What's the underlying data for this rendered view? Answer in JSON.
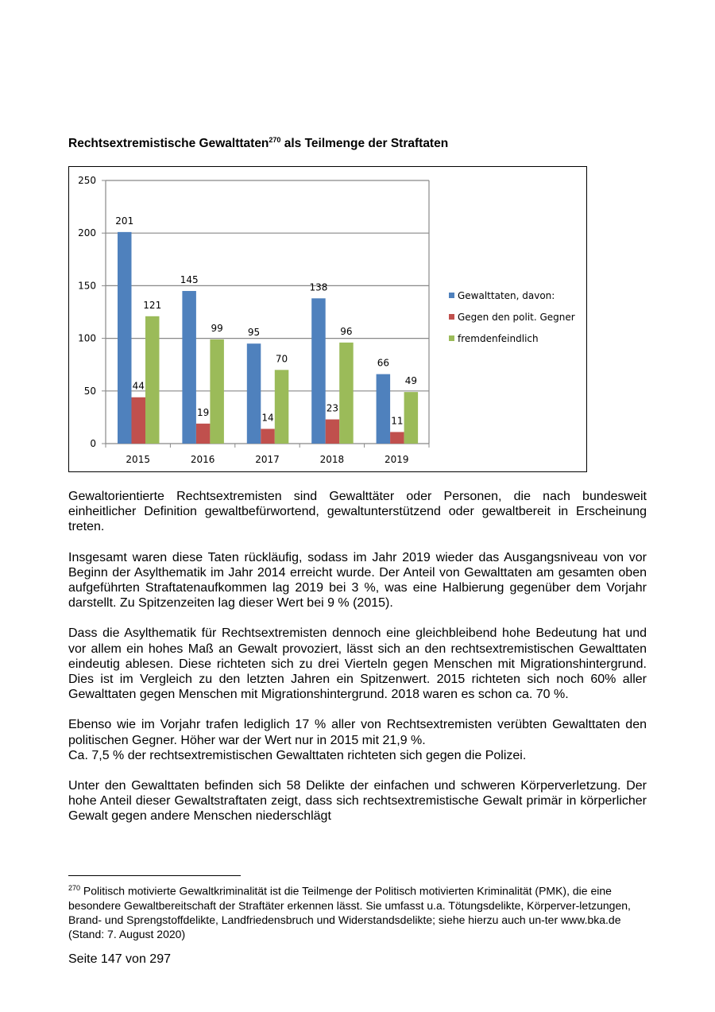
{
  "title": {
    "text": "Rechtsextremistische Gewalttaten",
    "sup": "270",
    "rest": " als Teilmenge der Straftaten"
  },
  "chart_data": {
    "type": "bar",
    "categories": [
      "2015",
      "2016",
      "2017",
      "2018",
      "2019"
    ],
    "series": [
      {
        "name": "Gewalttaten, davon:",
        "color": "#4f81bd",
        "values": [
          201,
          145,
          95,
          138,
          66
        ]
      },
      {
        "name": "Gegen den polit. Gegner",
        "color": "#c0504d",
        "values": [
          44,
          19,
          14,
          23,
          11
        ]
      },
      {
        "name": "fremdenfeindlich",
        "color": "#9bbb59",
        "values": [
          121,
          99,
          70,
          96,
          49
        ]
      }
    ],
    "ylim": [
      0,
      250
    ],
    "yticks": [
      0,
      50,
      100,
      150,
      200,
      250
    ],
    "grid": true,
    "legend": "right",
    "data_labels": true
  },
  "paragraphs": [
    "Gewaltorientierte Rechtsextremisten sind Gewalttäter oder Personen, die nach bundesweit einheitlicher Definition gewaltbefürwortend, gewaltunterstützend oder gewaltbereit in Erscheinung treten.",
    "Insgesamt waren diese Taten rückläufig, sodass im Jahr 2019 wieder das Ausgangsniveau von vor Beginn der Asylthematik im Jahr 2014 erreicht wurde. Der Anteil von Gewalttaten am gesamten oben aufgeführten Straftatenaufkommen lag 2019 bei 3 %, was eine Halbierung gegenüber dem Vorjahr darstellt. Zu Spitzenzeiten lag dieser Wert bei 9 % (2015).",
    "Dass die Asylthematik für Rechtsextremisten dennoch eine gleichbleibend hohe Bedeutung hat und vor allem ein hohes Maß an Gewalt provoziert, lässt sich an den rechtsextremistischen Gewalttaten eindeutig ablesen. Diese richteten sich zu drei Vierteln gegen Menschen mit Migrationshintergrund. Dies ist im Vergleich zu den letzten Jahren ein Spitzenwert. 2015 richteten sich noch 60% aller Gewalttaten gegen Menschen mit Migrationshintergrund. 2018 waren es schon ca. 70 %.",
    "Ebenso wie im Vorjahr trafen lediglich 17 % aller von Rechtsextremisten verübten Gewalttaten den politischen Gegner. Höher war der Wert nur in 2015 mit 21,9 %.",
    "Ca. 7,5 % der rechtsextremistischen Gewalttaten richteten sich gegen die Polizei.",
    "Unter den Gewalttaten befinden sich 58 Delikte der einfachen und schweren Körperverletzung. Der hohe Anteil dieser Gewaltstraftaten zeigt, dass sich rechtsextremistische Gewalt primär in körperlicher Gewalt gegen andere Menschen niederschlägt"
  ],
  "footnote": {
    "number": "270",
    "text": " Politisch motivierte Gewaltkriminalität ist die Teilmenge der Politisch motivierten Kriminalität (PMK), die eine besondere Gewaltbereitschaft der Straftäter erkennen lässt. Sie umfasst u.a. Tötungsdelikte, Körperver-letzungen, Brand- und Sprengstoffdelikte, Landfriedensbruch und Widerstandsdelikte; siehe hierzu auch un-ter www.bka.de (Stand: 7. August 2020)"
  },
  "page_number": "Seite 147 von 297"
}
